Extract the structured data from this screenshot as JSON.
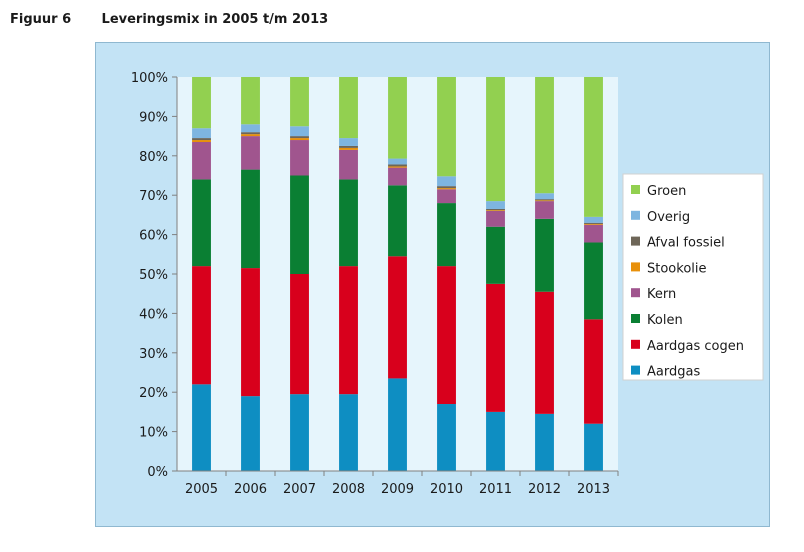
{
  "figure": {
    "number": "Figuur 6",
    "title": "Leveringsmix in 2005 t/m 2013"
  },
  "chart_data": {
    "type": "bar",
    "stacked": true,
    "title": "Leveringsmix in 2005 t/m 2013",
    "xlabel": "",
    "ylabel": "",
    "ylim": [
      0,
      100
    ],
    "y_ticks": [
      "0%",
      "10%",
      "20%",
      "30%",
      "40%",
      "50%",
      "60%",
      "70%",
      "80%",
      "90%",
      "100%"
    ],
    "categories": [
      "2005",
      "2006",
      "2007",
      "2008",
      "2009",
      "2010",
      "2011",
      "2012",
      "2013"
    ],
    "legend_position": "right",
    "grid": false,
    "series": [
      {
        "name": "Aardgas",
        "color": "#0e8ec2",
        "values": [
          22,
          19,
          19.5,
          19.5,
          23.5,
          17,
          15,
          14.5,
          12
        ]
      },
      {
        "name": "Aardgas cogen",
        "color": "#d8001c",
        "values": [
          30,
          32.5,
          30.5,
          32.5,
          31,
          35,
          32.5,
          31,
          26.5
        ]
      },
      {
        "name": "Kolen",
        "color": "#0a7f33",
        "values": [
          22,
          25,
          25,
          22,
          18,
          16,
          14.5,
          18.5,
          19.5
        ]
      },
      {
        "name": "Kern",
        "color": "#a0558e",
        "values": [
          9.5,
          8.5,
          9,
          7.5,
          4.5,
          3.5,
          4,
          4.5,
          4.5
        ]
      },
      {
        "name": "Stookolie",
        "color": "#e8900a",
        "values": [
          0.5,
          0.5,
          0.5,
          0.5,
          0.3,
          0.3,
          0.2,
          0.2,
          0.2
        ]
      },
      {
        "name": "Afval fossiel",
        "color": "#6e6658",
        "values": [
          0.5,
          0.5,
          0.5,
          0.5,
          0.5,
          0.5,
          0.3,
          0.3,
          0.3
        ]
      },
      {
        "name": "Overig",
        "color": "#7eb5e0",
        "values": [
          2.5,
          2,
          2.5,
          2,
          1.5,
          2.5,
          2,
          1.5,
          1.5
        ]
      },
      {
        "name": "Groen",
        "color": "#92d050",
        "values": [
          13,
          12,
          12.5,
          15.5,
          20.7,
          25.2,
          31.5,
          29.5,
          35.5
        ]
      }
    ]
  }
}
